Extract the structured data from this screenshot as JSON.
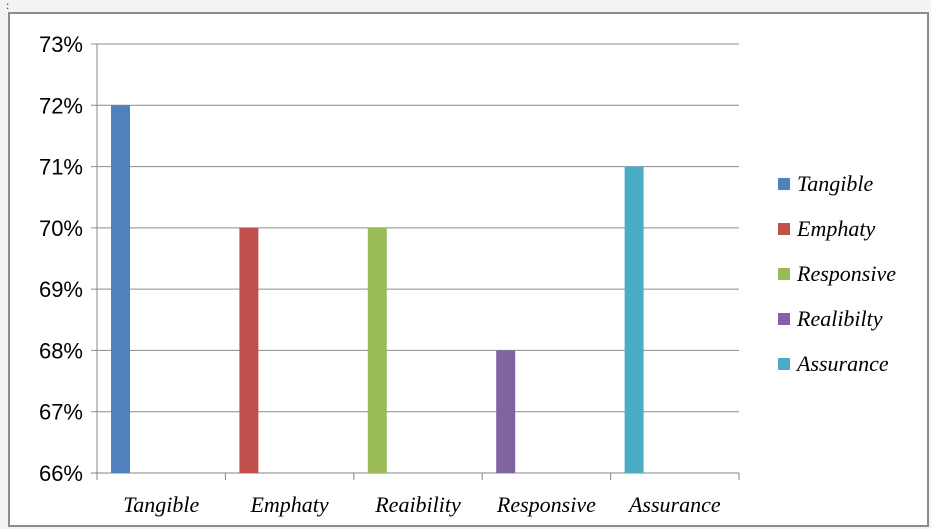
{
  "page": {
    "mark": ":"
  },
  "chart_data": {
    "type": "bar",
    "categories": [
      "Tangible",
      "Emphaty",
      "Reaibility",
      "Responsive",
      "Assurance"
    ],
    "values": [
      72,
      70,
      70,
      68,
      71
    ],
    "ylim": [
      66,
      73
    ],
    "yticks": [
      "66%",
      "67%",
      "68%",
      "69%",
      "70%",
      "71%",
      "72%",
      "73%"
    ],
    "grid": true,
    "legend_position": "right",
    "legend": [
      "Tangible",
      "Emphaty",
      "Responsive",
      "Realibilty",
      "Assurance"
    ],
    "colors": [
      "#4f81bd",
      "#c0504d",
      "#9bbb59",
      "#8064a2",
      "#4bacc6"
    ],
    "title": "",
    "xlabel": "",
    "ylabel": ""
  }
}
